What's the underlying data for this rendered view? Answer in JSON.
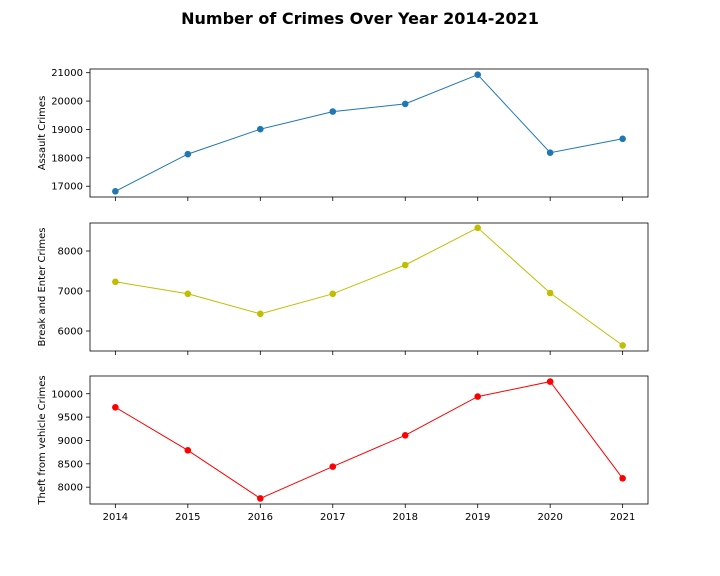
{
  "chart_data": {
    "title": "Number of Crimes Over Year 2014-2021",
    "type": "line",
    "layout": "3 vertically stacked subplots sharing x-axis",
    "x": [
      "2014",
      "2015",
      "2016",
      "2017",
      "2018",
      "2019",
      "2020",
      "2021"
    ],
    "xlim": [
      2013.65,
      2021.35
    ],
    "grid": false,
    "subplots": [
      {
        "type": "line",
        "ylabel": "Assault Crimes",
        "color": "#1f77b4",
        "marker": "circle",
        "values": [
          16820,
          18130,
          19010,
          19630,
          19900,
          20930,
          18180,
          18670
        ],
        "ylim": [
          16620,
          21130
        ],
        "yticks": [
          17000,
          18000,
          19000,
          20000,
          21000
        ]
      },
      {
        "type": "line",
        "ylabel": "Break and Enter Crimes",
        "color": "#bfbf00",
        "marker": "circle",
        "values": [
          7230,
          6930,
          6430,
          6930,
          7650,
          8580,
          6950,
          5640
        ],
        "ylim": [
          5500,
          8700
        ],
        "yticks": [
          6000,
          7000,
          8000
        ]
      },
      {
        "type": "line",
        "ylabel": "Theft from vehicle Crimes",
        "color": "#ff0000",
        "marker": "circle",
        "values": [
          9710,
          8790,
          7760,
          8440,
          9110,
          9940,
          10260,
          8190
        ],
        "ylim": [
          7640,
          10380
        ],
        "yticks": [
          8000,
          8500,
          9000,
          9500,
          10000
        ]
      }
    ]
  }
}
